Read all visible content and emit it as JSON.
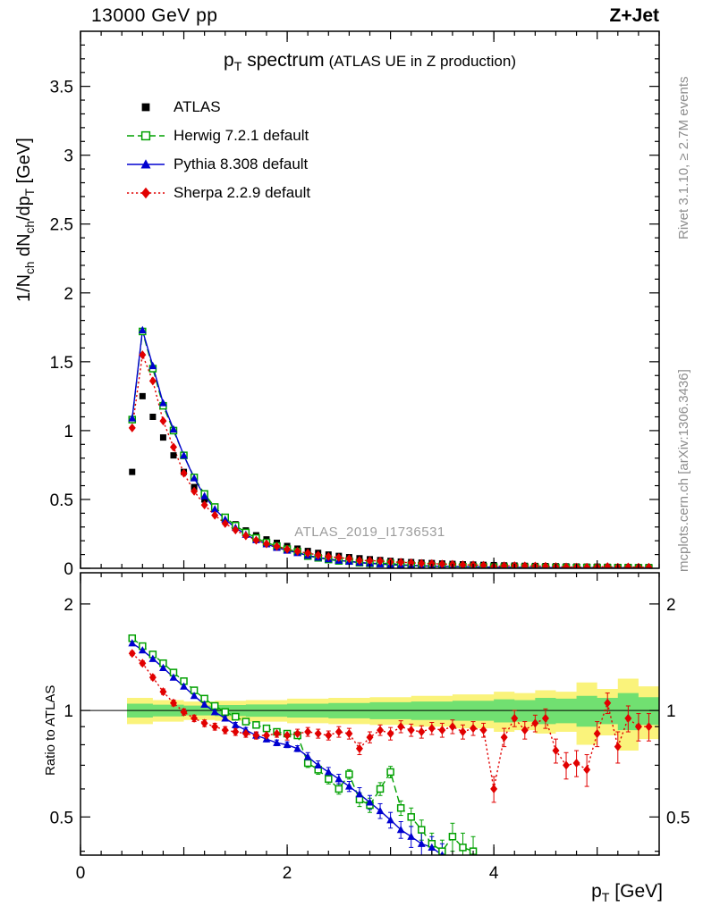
{
  "header": {
    "left": "13000 GeV pp",
    "right": "Z+Jet"
  },
  "title": {
    "main_p": "p",
    "main_sub": "T",
    "main_rest": " spectrum",
    "paren": "(ATLAS UE in Z production)"
  },
  "side": {
    "right_top": "Rivet 3.1.10, ≥ 2.7M events",
    "right_bottom": "mcplots.cern.ch [arXiv:1306.3436]"
  },
  "watermark": "ATLAS_2019_I1736531",
  "axis_labels": {
    "top_y": {
      "p1": "1/N",
      "s1": "ch",
      "p2": " dN",
      "s2": "ch",
      "p3": "/dp",
      "s3": "T",
      "p4": " [GeV]"
    },
    "ratio_y": "Ratio to ATLAS",
    "x": {
      "p": "p",
      "sub": "T",
      "rest": " [GeV]"
    }
  },
  "colors": {
    "atlas": "#000000",
    "herwig": "#00a000",
    "pythia": "#0000d0",
    "sherpa": "#e10000",
    "band_yellow": "#faf37b",
    "band_green": "#71e071",
    "gray_text": "#8e8e8e",
    "frame": "#000000"
  },
  "legend": {
    "items": [
      {
        "label": "ATLAS",
        "marker": "square",
        "line": "none",
        "color": "#000000"
      },
      {
        "label": "Herwig 7.2.1 default",
        "marker": "square-open",
        "line": "dashed",
        "color": "#00a000"
      },
      {
        "label": "Pythia 8.308 default",
        "marker": "triangle",
        "line": "solid",
        "color": "#0000d0"
      },
      {
        "label": "Sherpa 2.2.9 default",
        "marker": "diamond",
        "line": "dotted",
        "color": "#e10000"
      }
    ]
  },
  "chart_data": [
    {
      "type": "scatter",
      "panel": "spectrum",
      "title": "pT spectrum (ATLAS UE in Z production)",
      "xlabel": "pT [GeV]",
      "ylabel": "1/Nch dNch/dpT [GeV]",
      "xlim": [
        0,
        5.6
      ],
      "ylim": [
        0,
        3.9
      ],
      "yticks": [
        0,
        0.5,
        1,
        1.5,
        2,
        2.5,
        3,
        3.5
      ],
      "xticks_labeled": [
        0,
        2,
        4
      ],
      "x": [
        0.5,
        0.6,
        0.7,
        0.8,
        0.9,
        1.0,
        1.1,
        1.2,
        1.3,
        1.4,
        1.5,
        1.6,
        1.7,
        1.8,
        1.9,
        2.0,
        2.1,
        2.2,
        2.3,
        2.4,
        2.5,
        2.6,
        2.7,
        2.8,
        2.9,
        3.0,
        3.1,
        3.2,
        3.3,
        3.4,
        3.5,
        3.6,
        3.7,
        3.8,
        3.9,
        4.0,
        4.1,
        4.2,
        4.3,
        4.4,
        4.5,
        4.6,
        4.7,
        4.8,
        4.9,
        5.0,
        5.1,
        5.2,
        5.3,
        5.4,
        5.5
      ],
      "series": [
        {
          "id": "atlas",
          "name": "ATLAS",
          "color": "#000000",
          "marker": "square",
          "line": "none",
          "values": [
            0.7,
            1.25,
            1.1,
            0.95,
            0.82,
            0.7,
            0.59,
            0.5,
            0.43,
            0.37,
            0.32,
            0.275,
            0.24,
            0.21,
            0.185,
            0.162,
            0.143,
            0.126,
            0.112,
            0.1,
            0.09,
            0.081,
            0.073,
            0.066,
            0.06,
            0.054,
            0.049,
            0.045,
            0.041,
            0.038,
            0.035,
            0.032,
            0.029,
            0.027,
            0.025,
            0.023,
            0.021,
            0.02,
            0.018,
            0.017,
            0.016,
            0.015,
            0.014,
            0.013,
            0.012,
            0.012,
            0.011,
            0.01,
            0.01,
            0.009,
            0.009
          ]
        },
        {
          "id": "herwig",
          "name": "Herwig 7.2.1 default",
          "color": "#00a000",
          "marker": "square-open",
          "line": "dashed",
          "values": [
            1.08,
            1.72,
            1.45,
            1.18,
            1.0,
            0.82,
            0.66,
            0.54,
            0.445,
            0.37,
            0.31,
            0.26,
            0.22,
            0.187,
            0.161,
            0.139,
            0.121,
            0.089,
            0.076,
            0.064,
            0.054,
            0.053,
            0.041,
            0.036,
            0.036,
            0.036,
            0.026,
            0.023,
            0.019,
            0.016,
            0.014,
            0.014,
            0.012,
            0.011,
            0.01,
            0.009,
            0.008,
            0.008,
            0.007,
            0.007,
            0.006,
            0.006,
            0.005,
            0.005,
            0.005,
            0.004,
            0.004,
            0.004,
            0.004,
            0.003,
            0.003
          ]
        },
        {
          "id": "pythia",
          "name": "Pythia 8.308 default",
          "color": "#0000d0",
          "marker": "triangle",
          "line": "solid",
          "values": [
            1.09,
            1.73,
            1.47,
            1.2,
            1.01,
            0.82,
            0.655,
            0.525,
            0.43,
            0.355,
            0.295,
            0.245,
            0.206,
            0.176,
            0.15,
            0.13,
            0.112,
            0.093,
            0.079,
            0.067,
            0.057,
            0.049,
            0.042,
            0.036,
            0.031,
            0.026,
            0.023,
            0.02,
            0.017,
            0.015,
            0.014,
            0.012,
            0.011,
            0.01,
            0.009,
            0.008,
            0.007,
            0.007,
            0.006,
            0.006,
            0.005,
            0.005,
            0.005,
            0.004,
            0.004,
            0.004,
            0.004,
            0.003,
            0.003,
            0.003,
            0.003
          ]
        },
        {
          "id": "sherpa",
          "name": "Sherpa 2.2.9 default",
          "color": "#e10000",
          "marker": "diamond",
          "line": "dotted",
          "values": [
            1.02,
            1.55,
            1.36,
            1.07,
            0.88,
            0.69,
            0.56,
            0.46,
            0.385,
            0.325,
            0.278,
            0.236,
            0.204,
            0.178,
            0.159,
            0.138,
            0.123,
            0.11,
            0.096,
            0.085,
            0.078,
            0.07,
            0.057,
            0.055,
            0.053,
            0.046,
            0.044,
            0.04,
            0.036,
            0.034,
            0.031,
            0.029,
            0.025,
            0.024,
            0.022,
            0.014,
            0.018,
            0.019,
            0.017,
            0.016,
            0.015,
            0.012,
            0.01,
            0.009,
            0.008,
            0.01,
            0.012,
            0.008,
            0.01,
            0.008,
            0.008
          ]
        }
      ]
    },
    {
      "type": "ratio",
      "panel": "ratio",
      "title": "Ratio to ATLAS",
      "yscale": "log",
      "ylim": [
        0.39,
        2.45
      ],
      "yticks": [
        0.5,
        1,
        2
      ],
      "yticks_minor": [
        0.4,
        0.6,
        0.7,
        0.8,
        0.9
      ],
      "xticks_labeled": [
        0,
        2,
        4
      ],
      "reference": 1,
      "bands": {
        "x": [
          0.45,
          0.7,
          1.0,
          1.3,
          1.6,
          2.0,
          2.4,
          2.8,
          3.2,
          3.6,
          4.0,
          4.2,
          4.4,
          4.6,
          4.8,
          5.0,
          5.2,
          5.4,
          5.6
        ],
        "yellow_half": [
          0.085,
          0.07,
          0.06,
          0.065,
          0.07,
          0.08,
          0.085,
          0.09,
          0.1,
          0.11,
          0.13,
          0.12,
          0.14,
          0.13,
          0.2,
          0.15,
          0.23,
          0.17,
          0.19
        ],
        "green_half": [
          0.045,
          0.038,
          0.032,
          0.036,
          0.04,
          0.045,
          0.05,
          0.055,
          0.06,
          0.065,
          0.075,
          0.07,
          0.085,
          0.08,
          0.1,
          0.085,
          0.12,
          0.09,
          0.1
        ]
      },
      "x": [
        0.5,
        0.6,
        0.7,
        0.8,
        0.9,
        1.0,
        1.1,
        1.2,
        1.3,
        1.4,
        1.5,
        1.6,
        1.7,
        1.8,
        1.9,
        2.0,
        2.1,
        2.2,
        2.3,
        2.4,
        2.5,
        2.6,
        2.7,
        2.8,
        2.9,
        3.0,
        3.1,
        3.2,
        3.3,
        3.4,
        3.5,
        3.6,
        3.7,
        3.8,
        3.9,
        4.0,
        4.1,
        4.2,
        4.3,
        4.4,
        4.5,
        4.6,
        4.7,
        4.8,
        4.9,
        5.0,
        5.1,
        5.2,
        5.3,
        5.4,
        5.5
      ],
      "series": [
        {
          "id": "herwig",
          "name": "Herwig 7.2.1 default",
          "color": "#00a000",
          "marker": "square-open",
          "line": "dashed",
          "values": [
            1.6,
            1.52,
            1.44,
            1.36,
            1.28,
            1.21,
            1.14,
            1.08,
            1.03,
            0.99,
            0.96,
            0.93,
            0.91,
            0.89,
            0.87,
            0.86,
            0.85,
            0.71,
            0.68,
            0.64,
            0.6,
            0.66,
            0.56,
            0.54,
            0.6,
            0.67,
            0.53,
            0.5,
            0.46,
            0.42,
            0.4,
            0.44,
            0.41,
            0.4,
            null,
            null,
            null,
            null,
            null,
            null,
            null,
            null,
            null,
            null,
            null,
            null,
            null,
            null,
            null,
            null,
            null
          ],
          "yerr": [
            0.015,
            0.015,
            0.015,
            0.015,
            0.015,
            0.015,
            0.015,
            0.015,
            0.015,
            0.015,
            0.015,
            0.015,
            0.015,
            0.015,
            0.015,
            0.015,
            0.015,
            0.02,
            0.02,
            0.02,
            0.02,
            0.02,
            0.025,
            0.025,
            0.025,
            0.025,
            0.025,
            0.03,
            0.03,
            0.03,
            0.03,
            0.04,
            0.04,
            0.04,
            null,
            null,
            null,
            null,
            null,
            null,
            null,
            null,
            null,
            null,
            null,
            null,
            null,
            null,
            null,
            null,
            null
          ]
        },
        {
          "id": "pythia",
          "name": "Pythia 8.308 default",
          "color": "#0000d0",
          "marker": "triangle",
          "line": "solid",
          "values": [
            1.55,
            1.48,
            1.4,
            1.32,
            1.24,
            1.17,
            1.1,
            1.04,
            0.99,
            0.95,
            0.91,
            0.88,
            0.85,
            0.83,
            0.81,
            0.8,
            0.78,
            0.74,
            0.7,
            0.67,
            0.64,
            0.61,
            0.58,
            0.55,
            0.52,
            0.49,
            0.46,
            0.44,
            0.42,
            0.41,
            0.39,
            null,
            null,
            null,
            null,
            null,
            null,
            null,
            null,
            null,
            null,
            null,
            null,
            null,
            null,
            null,
            null,
            null,
            null,
            null,
            null
          ],
          "yerr": [
            0.015,
            0.015,
            0.015,
            0.015,
            0.015,
            0.015,
            0.015,
            0.015,
            0.015,
            0.015,
            0.015,
            0.015,
            0.015,
            0.015,
            0.015,
            0.015,
            0.015,
            0.02,
            0.02,
            0.02,
            0.02,
            0.02,
            0.025,
            0.025,
            0.025,
            0.025,
            0.025,
            0.03,
            0.03,
            0.03,
            0.03,
            null,
            null,
            null,
            null,
            null,
            null,
            null,
            null,
            null,
            null,
            null,
            null,
            null,
            null,
            null,
            null,
            null,
            null,
            null,
            null
          ]
        },
        {
          "id": "sherpa",
          "name": "Sherpa 2.2.9 default",
          "color": "#e10000",
          "marker": "diamond",
          "line": "dotted",
          "values": [
            1.45,
            1.36,
            1.24,
            1.13,
            1.05,
            0.99,
            0.95,
            0.92,
            0.9,
            0.88,
            0.87,
            0.86,
            0.85,
            0.85,
            0.86,
            0.85,
            0.86,
            0.87,
            0.86,
            0.85,
            0.87,
            0.86,
            0.78,
            0.84,
            0.88,
            0.86,
            0.9,
            0.88,
            0.87,
            0.89,
            0.88,
            0.9,
            0.87,
            0.89,
            0.88,
            0.6,
            0.84,
            0.95,
            0.88,
            0.92,
            0.95,
            0.77,
            0.7,
            0.71,
            0.68,
            0.86,
            1.05,
            0.79,
            0.95,
            0.9,
            0.9
          ],
          "yerr": [
            0.02,
            0.02,
            0.02,
            0.02,
            0.02,
            0.02,
            0.02,
            0.02,
            0.02,
            0.02,
            0.02,
            0.02,
            0.02,
            0.02,
            0.02,
            0.025,
            0.025,
            0.025,
            0.025,
            0.025,
            0.03,
            0.03,
            0.03,
            0.03,
            0.03,
            0.035,
            0.035,
            0.035,
            0.035,
            0.035,
            0.04,
            0.04,
            0.04,
            0.04,
            0.04,
            0.05,
            0.05,
            0.05,
            0.05,
            0.05,
            0.06,
            0.06,
            0.06,
            0.06,
            0.07,
            0.07,
            0.07,
            0.08,
            0.08,
            0.08,
            0.08
          ]
        }
      ]
    }
  ]
}
